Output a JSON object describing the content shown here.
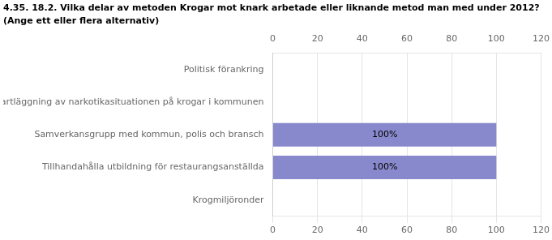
{
  "chart_data": {
    "type": "bar",
    "orientation": "horizontal",
    "title": "4.35. 18.2. Vilka delar av metoden Krogar mot knark arbetade eller liknande metod man med under 2012?",
    "subtitle": "(Ange ett eller flera alternativ)",
    "categories": [
      "Politisk förankring",
      "Kartläggning av narkotikasituationen på krogar i kommunen",
      "Samverkansgrupp med kommun, polis och bransch",
      "Tillhandahålla utbildning för restaurangsanställda",
      "Krogmiljöronder"
    ],
    "values": [
      0,
      0,
      100,
      100,
      0
    ],
    "value_labels": [
      null,
      null,
      "100%",
      "100%",
      null
    ],
    "data_labels": true,
    "color": "#8888cc",
    "xlim": [
      0,
      120
    ],
    "xticks": [
      0,
      20,
      40,
      60,
      80,
      100,
      120
    ],
    "grid": true
  }
}
